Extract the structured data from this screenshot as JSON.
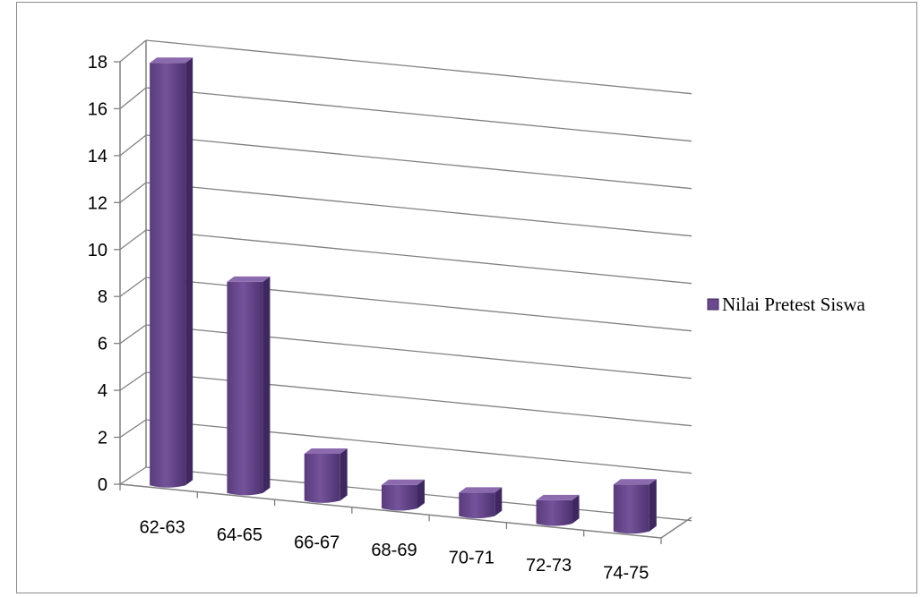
{
  "chart_data": {
    "type": "bar",
    "categories": [
      "62-63",
      "64-65",
      "66-67",
      "68-69",
      "70-71",
      "72-73",
      "74-75"
    ],
    "series": [
      {
        "name": "Nilai Pretest Siswa",
        "values": [
          18,
          9,
          2,
          1,
          1,
          1,
          2
        ]
      }
    ],
    "ylim": [
      0,
      18
    ],
    "yticks": [
      0,
      2,
      4,
      6,
      8,
      10,
      12,
      14,
      16,
      18
    ],
    "grid": true,
    "legend_position": "right",
    "style": "3d-column",
    "bar_color": "#6a4a8c"
  }
}
